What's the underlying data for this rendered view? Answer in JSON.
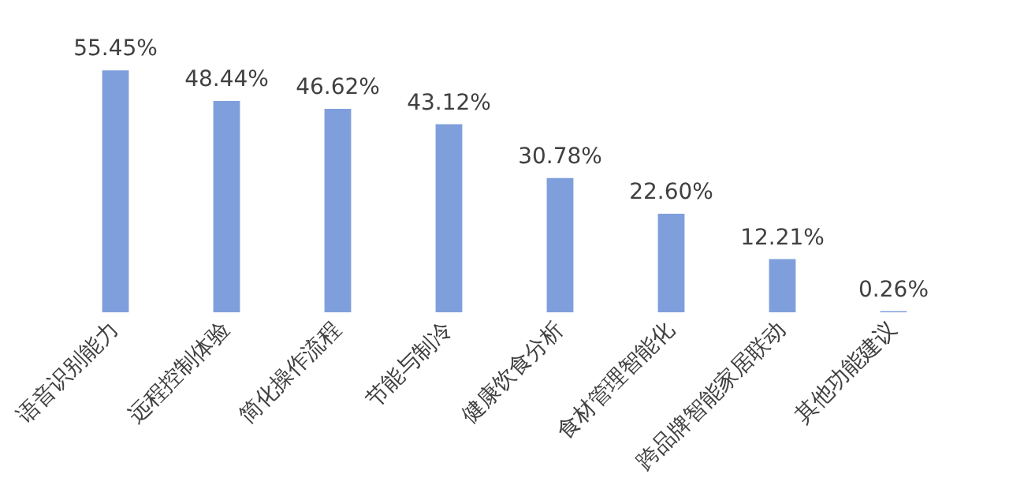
{
  "chart_data": {
    "type": "bar",
    "categories": [
      "语音识别能力",
      "远程控制体验",
      "简化操作流程",
      "节能与制冷",
      "健康饮食分析",
      "食材管理智能化",
      "跨品牌智能家居联动",
      "其他功能建议"
    ],
    "values": [
      55.45,
      48.44,
      46.62,
      43.12,
      30.78,
      22.6,
      12.21,
      0.26
    ],
    "value_labels": [
      "55.45%",
      "48.44%",
      "46.62%",
      "43.12%",
      "30.78%",
      "22.60%",
      "12.21%",
      "0.26%"
    ],
    "color": "#7f9fdc",
    "grid": false,
    "legend": false,
    "tick_labels": "x"
  }
}
